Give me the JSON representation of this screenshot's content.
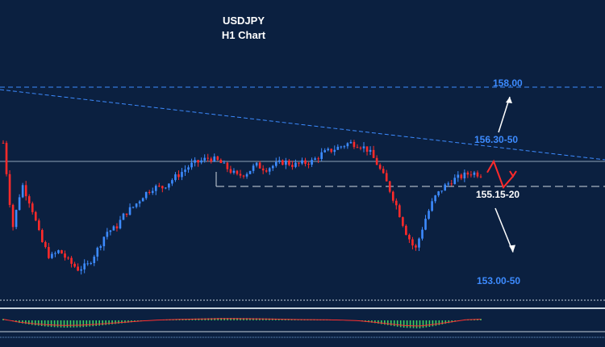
{
  "chart_data": {
    "type": "candlestick",
    "title": "USDJPY",
    "subtitle": "H1 Chart",
    "levels": [
      {
        "label": "158.00",
        "value": 158.0,
        "role": "target-up"
      },
      {
        "label": "156.30-50",
        "value": 156.4,
        "role": "resistance"
      },
      {
        "label": "155.15-20",
        "value": 155.175,
        "role": "support"
      },
      {
        "label": "153.00-50",
        "value": 153.25,
        "role": "target-down"
      }
    ],
    "price_path": [
      156.5,
      154.2,
      155.4,
      154.8,
      153.9,
      153.4,
      153.6,
      153.3,
      153.1,
      153.2,
      153.6,
      154.1,
      154.2,
      154.6,
      154.8,
      155.1,
      155.3,
      155.3,
      155.5,
      155.7,
      155.9,
      156.0,
      156.1,
      156.0,
      155.8,
      155.6,
      155.7,
      155.9,
      155.8,
      155.9,
      156.0,
      155.9,
      155.95,
      156.0,
      156.2,
      156.3,
      156.4,
      156.5,
      156.45,
      156.3,
      155.9,
      155.4,
      154.8,
      154.1,
      153.6,
      154.4,
      155.0,
      155.3,
      155.5,
      155.6,
      155.7,
      155.65
    ],
    "projection": {
      "zigzag": [
        155.7,
        156.0,
        155.3,
        155.6
      ],
      "bull_target": 158.0,
      "bear_target": 153.25
    },
    "oscillator": [
      0.2,
      -0.3,
      -0.6,
      -0.8,
      -0.9,
      -0.85,
      -0.7,
      -0.5,
      -0.3,
      -0.1,
      0.05,
      0.15,
      0.2,
      0.25,
      0.3,
      0.3,
      0.28,
      0.25,
      0.2,
      0.15,
      0.12,
      0.1,
      0.05,
      -0.05,
      -0.3,
      -0.6,
      -0.9,
      -1.0,
      -0.7,
      -0.3,
      0.1,
      0.2
    ],
    "colors": {
      "background": "#0b2040",
      "up": "#3d8bff",
      "down": "#ff2a2a",
      "projection": "#ff2a2a",
      "arrows": "#ffffff",
      "osc_pos": "#40d060",
      "osc_neg": "#40d060",
      "osc_line": "#ff3030"
    },
    "grid": false
  }
}
